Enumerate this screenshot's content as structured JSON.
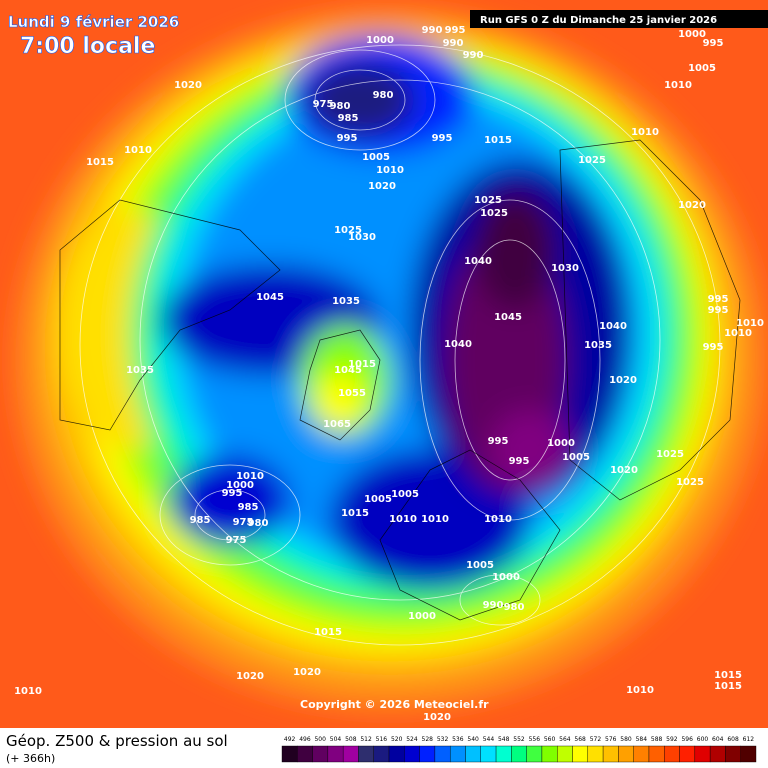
{
  "header": {
    "date": "Lundi 9 février 2026",
    "time": "7:00 locale",
    "run": "Run GFS 0 Z du Dimanche 25 janvier 2026"
  },
  "pressure_labels": [
    "1000",
    "990",
    "995",
    "990",
    "990",
    "1020",
    "980",
    "975",
    "980",
    "985",
    "995",
    "995",
    "1015",
    "1010",
    "1015",
    "1005",
    "1010",
    "1020",
    "1025",
    "1010",
    "1000",
    "995",
    "1005",
    "1010",
    "1020",
    "1025",
    "1025",
    "1025",
    "1030",
    "1040",
    "1030",
    "1045",
    "1035",
    "1045",
    "995",
    "995",
    "1010",
    "1010",
    "1040",
    "1040",
    "1035",
    "995",
    "1035",
    "1045",
    "1015",
    "1055",
    "1020",
    "1065",
    "995",
    "1000",
    "1005",
    "995",
    "1025",
    "1020",
    "1025",
    "1010",
    "1000",
    "995",
    "985",
    "985",
    "975",
    "980",
    "975",
    "1005",
    "1005",
    "1015",
    "1010",
    "1010",
    "1010",
    "1005",
    "1000",
    "990",
    "980",
    "1000",
    "1015",
    "1020",
    "1020",
    "1010",
    "1010",
    "1015",
    "1015",
    "1020"
  ],
  "copyright": "Copyright © 2026 Meteociel.fr",
  "footer": {
    "title": "Géop. Z500 & pression au sol",
    "subtitle": "(+ 366h)"
  },
  "legend": {
    "labels": [
      492,
      496,
      500,
      504,
      508,
      512,
      516,
      520,
      524,
      528,
      532,
      536,
      540,
      544,
      548,
      552,
      556,
      560,
      564,
      568,
      572,
      576,
      580,
      584,
      588,
      592,
      596,
      600,
      604,
      608,
      612
    ],
    "colors": [
      "#200020",
      "#400040",
      "#600060",
      "#800080",
      "#a000a0",
      "#2e2e6e",
      "#1a1a80",
      "#0000a0",
      "#0000d0",
      "#0020ff",
      "#0060ff",
      "#0090ff",
      "#00c0ff",
      "#00e0ff",
      "#00ffd0",
      "#00ff80",
      "#40ff40",
      "#80ff00",
      "#c0ff00",
      "#ffff00",
      "#ffe000",
      "#ffc000",
      "#ffa000",
      "#ff8000",
      "#ff6000",
      "#ff4000",
      "#ff2000",
      "#e00000",
      "#b00000",
      "#800000",
      "#500000"
    ]
  }
}
